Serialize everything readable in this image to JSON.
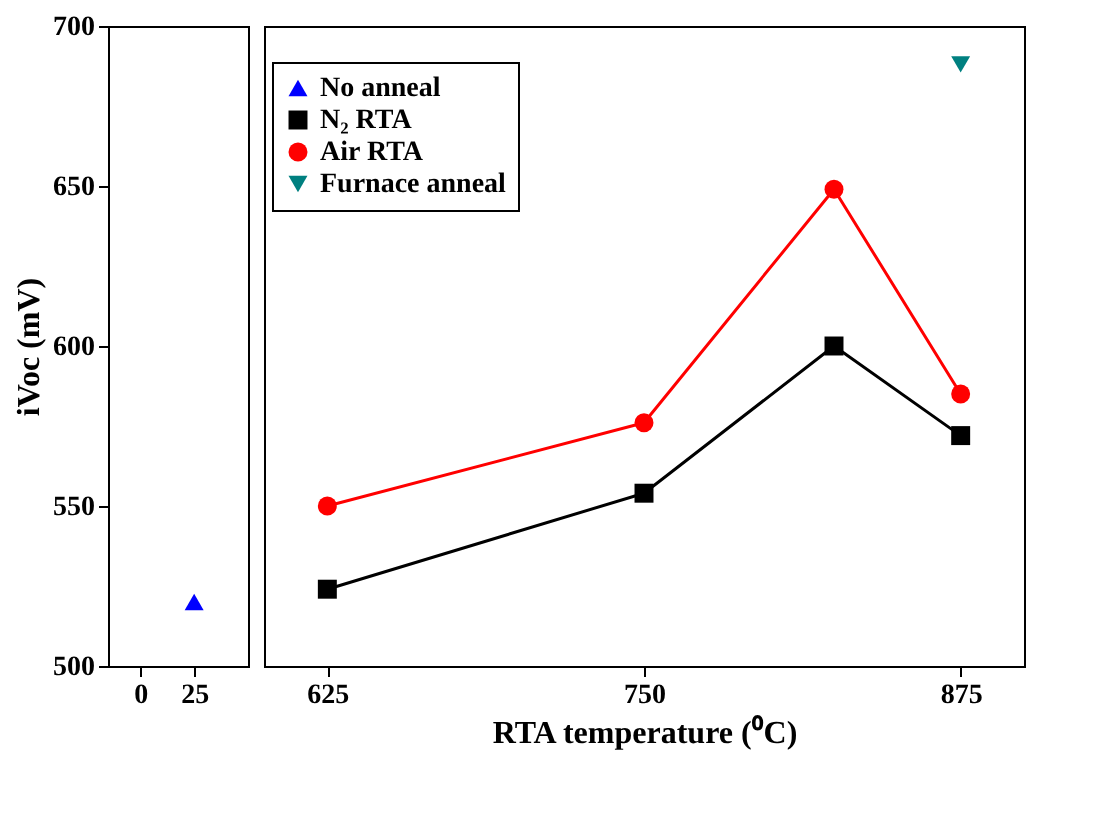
{
  "chart_data": [
    {
      "type": "scatter",
      "ylabel": "iVoc (mV)",
      "xlim": [
        -15,
        50
      ],
      "xticks": [
        0,
        25
      ],
      "ylim": [
        500,
        700
      ],
      "yticks": [
        500,
        550,
        600,
        650,
        700
      ],
      "grid": false,
      "series": [
        {
          "name": "No anneal",
          "color": "#0000ff",
          "marker": "triangle",
          "x": [
            25
          ],
          "values": [
            520
          ]
        }
      ]
    },
    {
      "type": "line",
      "xlabel": "RTA temperature (⁰C)",
      "xlim": [
        600,
        900
      ],
      "xticks": [
        625,
        750,
        875
      ],
      "ylim": [
        500,
        700
      ],
      "yticks": [
        500,
        550,
        600,
        650,
        700
      ],
      "tick_labels": "x",
      "grid": false,
      "legend": "top left",
      "series": [
        {
          "name": "N₂ RTA",
          "color": "#000000",
          "marker": "square",
          "x": [
            625,
            750,
            825,
            875
          ],
          "values": [
            524,
            554,
            600,
            572
          ]
        },
        {
          "name": "Air RTA",
          "color": "#ff0000",
          "marker": "circle",
          "x": [
            625,
            750,
            825,
            875
          ],
          "values": [
            550,
            576,
            649,
            585
          ]
        },
        {
          "name": "Furnace anneal",
          "type": "scatter",
          "color": "#008080",
          "marker": "triangle-down",
          "x": [
            875
          ],
          "values": [
            688
          ]
        }
      ]
    }
  ]
}
